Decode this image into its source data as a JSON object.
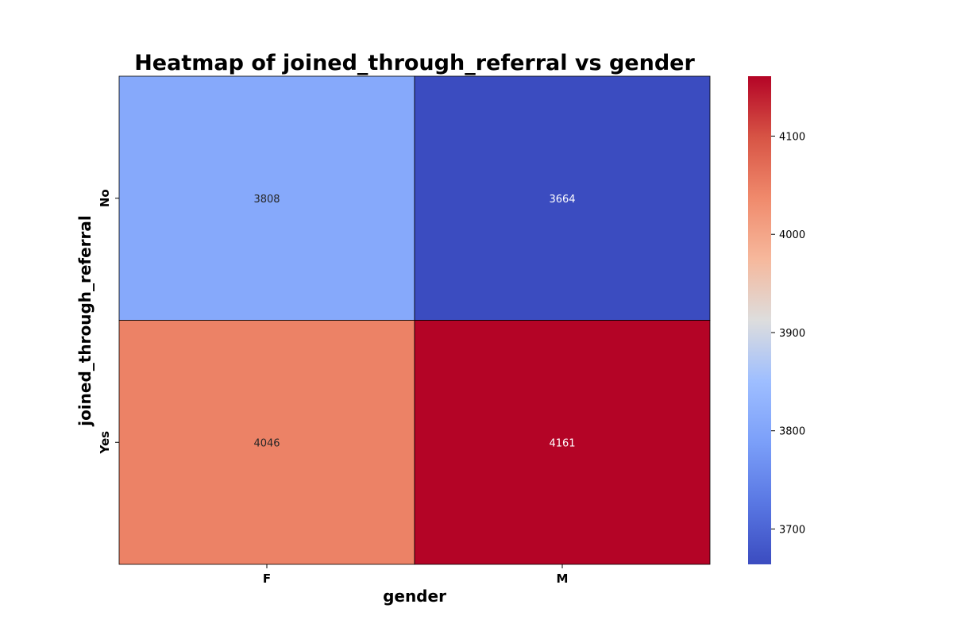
{
  "chart_data": {
    "type": "heatmap",
    "title": "Heatmap of joined_through_referral vs gender",
    "xlabel": "gender",
    "ylabel": "joined_through_referral",
    "x_categories": [
      "F",
      "M"
    ],
    "y_categories": [
      "No",
      "Yes"
    ],
    "values": [
      [
        3808,
        3664
      ],
      [
        4046,
        4161
      ]
    ],
    "colormap": "coolwarm",
    "colorbar": {
      "vmin": 3664,
      "vmax": 4161,
      "ticks": [
        3700,
        3800,
        3900,
        4000,
        4100
      ],
      "tick_labels": [
        "3700",
        "3800",
        "3900",
        "4000",
        "4100"
      ]
    },
    "cell_border_color": "#000000",
    "legend": "colorbar-right",
    "grid": false
  }
}
